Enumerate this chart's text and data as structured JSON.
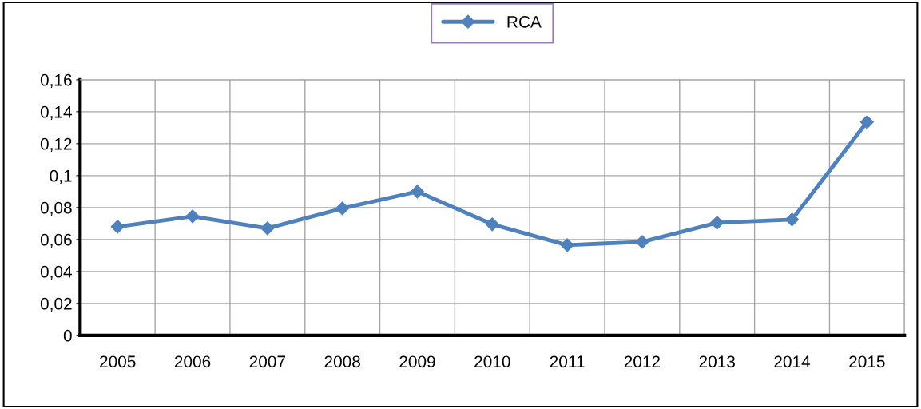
{
  "chart_data": {
    "type": "line",
    "categories": [
      "2005",
      "2006",
      "2007",
      "2008",
      "2009",
      "2010",
      "2011",
      "2012",
      "2013",
      "2014",
      "2015"
    ],
    "series": [
      {
        "name": "RCA",
        "color": "#4f81bd",
        "values": [
          0.068,
          0.0745,
          0.067,
          0.0795,
          0.09,
          0.0695,
          0.0565,
          0.0585,
          0.0705,
          0.0725,
          0.1335
        ]
      }
    ],
    "ylim": [
      0,
      0.16
    ],
    "yticks": [
      0,
      {
        "value": 0.02,
        "label": "0,02"
      },
      {
        "value": 0.04,
        "label": "0,04"
      },
      {
        "value": 0.06,
        "label": "0,06"
      },
      {
        "value": 0.08,
        "label": "0,08"
      },
      {
        "value": 0.1,
        "label": "0,1"
      },
      {
        "value": 0.12,
        "label": "0,12"
      },
      {
        "value": 0.14,
        "label": "0,14"
      },
      {
        "value": 0.16,
        "label": "0,16"
      }
    ],
    "grid": true,
    "legend": "top",
    "marker": "diamond",
    "line_style": "solid"
  }
}
